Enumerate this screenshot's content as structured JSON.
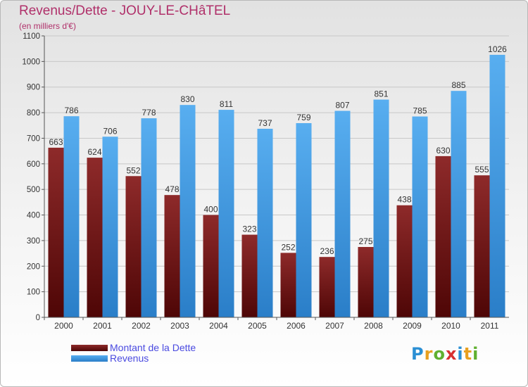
{
  "title": "Revenus/Dette - JOUY-LE-CHâTEL",
  "subtitle": "(en milliers d'€)",
  "logo": {
    "text": "Proxiti",
    "letters": [
      {
        "char": "P",
        "color": "#2a8fd4"
      },
      {
        "char": "r",
        "color": "#e8a020"
      },
      {
        "char": "o",
        "color": "#60b030"
      },
      {
        "char": "x",
        "color": "#d83030"
      },
      {
        "char": "i",
        "color": "#2a8fd4"
      },
      {
        "char": "t",
        "color": "#e8a020"
      },
      {
        "char": "i",
        "color": "#60b030"
      }
    ]
  },
  "chart_data": {
    "type": "bar",
    "categories": [
      "2000",
      "2001",
      "2002",
      "2003",
      "2004",
      "2005",
      "2006",
      "2007",
      "2008",
      "2009",
      "2010",
      "2011"
    ],
    "series": [
      {
        "name": "Montant de la Dette",
        "color": "#7a1c1c",
        "values": [
          663,
          624,
          552,
          478,
          400,
          323,
          252,
          236,
          275,
          438,
          630,
          555
        ]
      },
      {
        "name": "Revenus",
        "color": "#4aa0e4",
        "values": [
          786,
          706,
          778,
          830,
          811,
          737,
          759,
          807,
          851,
          785,
          885,
          1026
        ]
      }
    ],
    "ylim": [
      0,
      1100
    ],
    "yticks": [
      0,
      100,
      200,
      300,
      400,
      500,
      600,
      700,
      800,
      900,
      1000,
      1100
    ],
    "grid": true,
    "legend": "bottom-left"
  }
}
